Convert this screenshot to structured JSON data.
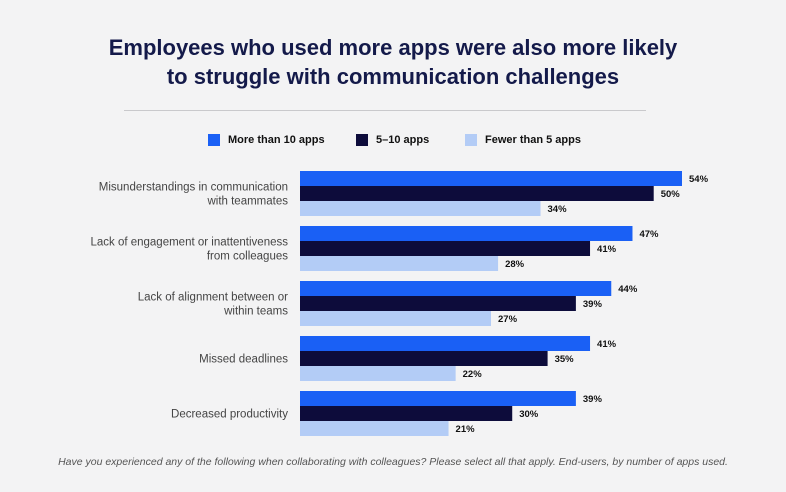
{
  "chart_data": {
    "type": "bar",
    "orientation": "horizontal",
    "title": [
      "Employees who used more apps were also more likely",
      "to struggle with communication challenges"
    ],
    "categories": [
      [
        "Misunderstandings in communication",
        "with teammates"
      ],
      [
        "Lack of engagement or inattentiveness",
        "from colleagues"
      ],
      [
        "Lack of alignment between or",
        "within teams"
      ],
      [
        "Missed deadlines"
      ],
      [
        "Decreased productivity"
      ]
    ],
    "series": [
      {
        "name": "More than 10 apps",
        "color": "#1a60f5",
        "values": [
          54,
          47,
          44,
          41,
          39
        ]
      },
      {
        "name": "5–10 apps",
        "color": "#0d0c3b",
        "values": [
          50,
          41,
          39,
          35,
          30
        ]
      },
      {
        "name": "Fewer than 5 apps",
        "color": "#b3ccf6",
        "values": [
          34,
          28,
          27,
          22,
          21
        ]
      }
    ],
    "value_suffix": "%",
    "xlim": [
      0,
      54
    ],
    "legend_position": "top",
    "grid": false
  },
  "footnote": "Have you experienced any of the following when collaborating with colleagues? Please select all that apply. End-users, by number of apps used."
}
